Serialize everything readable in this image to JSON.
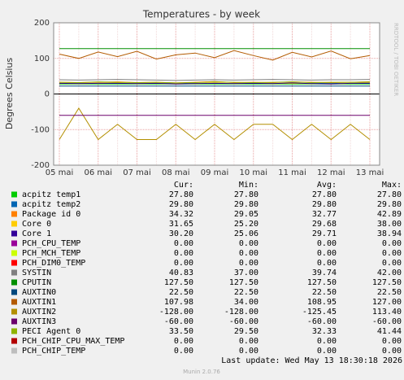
{
  "chart_data": {
    "type": "line",
    "title": "Temperatures - by week",
    "y_label": "Degrees Celsius",
    "side_text": "RRDTOOL / TOBI OETIKER",
    "categories": [
      "05 mai",
      null,
      "06 mai",
      null,
      "07 mai",
      null,
      "08 mai",
      null,
      "09 mai",
      null,
      "10 mai",
      null,
      "11 mai",
      null,
      "12 mai",
      null,
      "13 mai"
    ],
    "ylim": [
      -200,
      200
    ],
    "yticks": [
      -200,
      -100,
      0,
      100,
      200
    ],
    "grid": true,
    "table_header": [
      "Cur:",
      "Min:",
      "Avg:",
      "Max:"
    ],
    "series": [
      {
        "name": "acpitz temp1",
        "color": "#00cc00",
        "values": [
          27.8,
          27.8,
          27.8,
          27.8,
          27.8,
          27.8,
          27.8,
          27.8,
          27.8,
          27.8,
          27.8,
          27.8,
          27.8,
          27.8,
          27.8,
          27.8,
          27.8
        ],
        "stats": [
          "27.80",
          "27.80",
          "27.80",
          "27.80"
        ]
      },
      {
        "name": "acpitz temp2",
        "color": "#0066b3",
        "values": [
          29.8,
          29.8,
          29.8,
          29.8,
          29.8,
          29.8,
          29.8,
          29.8,
          29.8,
          29.8,
          29.8,
          29.8,
          29.8,
          29.8,
          29.8,
          29.8,
          29.8
        ],
        "stats": [
          "29.80",
          "29.80",
          "29.80",
          "29.80"
        ]
      },
      {
        "name": "Package id 0",
        "color": "#ff8000",
        "values": [
          33,
          32,
          33,
          34,
          32,
          33,
          31,
          33,
          35,
          32,
          33,
          32,
          34,
          33,
          32,
          33,
          34.32
        ],
        "stats": [
          "34.32",
          "29.05",
          "32.77",
          "42.89"
        ]
      },
      {
        "name": "Core 0",
        "color": "#ffcc00",
        "values": [
          30,
          29,
          30,
          31,
          29,
          30,
          28,
          29,
          31,
          29,
          30,
          29,
          30,
          29,
          28,
          30,
          31.65
        ],
        "stats": [
          "31.65",
          "25.20",
          "29.68",
          "38.00"
        ]
      },
      {
        "name": "Core 1",
        "color": "#330099",
        "values": [
          30,
          29,
          30,
          30,
          29,
          30,
          28,
          29,
          30,
          29,
          30,
          29,
          31,
          29,
          28,
          30,
          30.2
        ],
        "stats": [
          "30.20",
          "25.06",
          "29.71",
          "38.94"
        ]
      },
      {
        "name": "PCH_CPU_TEMP",
        "color": "#990099",
        "values": [
          0,
          0,
          0,
          0,
          0,
          0,
          0,
          0,
          0,
          0,
          0,
          0,
          0,
          0,
          0,
          0,
          0
        ],
        "stats": [
          "0.00",
          "0.00",
          "0.00",
          "0.00"
        ]
      },
      {
        "name": "PCH_MCH_TEMP",
        "color": "#ccff00",
        "values": [
          0,
          0,
          0,
          0,
          0,
          0,
          0,
          0,
          0,
          0,
          0,
          0,
          0,
          0,
          0,
          0,
          0
        ],
        "stats": [
          "0.00",
          "0.00",
          "0.00",
          "0.00"
        ]
      },
      {
        "name": "PCH_DIM0_TEMP",
        "color": "#ff0000",
        "values": [
          0,
          0,
          0,
          0,
          0,
          0,
          0,
          0,
          0,
          0,
          0,
          0,
          0,
          0,
          0,
          0,
          0
        ],
        "stats": [
          "0.00",
          "0.00",
          "0.00",
          "0.00"
        ]
      },
      {
        "name": "SYSTIN",
        "color": "#808080",
        "values": [
          40,
          39,
          40,
          41,
          40,
          39,
          38,
          39,
          40,
          39,
          40,
          41,
          40,
          39,
          40,
          40,
          40.83
        ],
        "stats": [
          "40.83",
          "37.00",
          "39.74",
          "42.00"
        ]
      },
      {
        "name": "CPUTIN",
        "color": "#008f00",
        "values": [
          127.5,
          127.5,
          127.5,
          127.5,
          127.5,
          127.5,
          127.5,
          127.5,
          127.5,
          127.5,
          127.5,
          127.5,
          127.5,
          127.5,
          127.5,
          127.5,
          127.5
        ],
        "stats": [
          "127.50",
          "127.50",
          "127.50",
          "127.50"
        ]
      },
      {
        "name": "AUXTIN0",
        "color": "#00487d",
        "values": [
          22.5,
          22.5,
          22.5,
          22.5,
          22.5,
          22.5,
          22.5,
          22.5,
          22.5,
          22.5,
          22.5,
          22.5,
          22.5,
          22.5,
          22.5,
          22.5,
          22.5
        ],
        "stats": [
          "22.50",
          "22.50",
          "22.50",
          "22.50"
        ]
      },
      {
        "name": "AUXTIN1",
        "color": "#b35a00",
        "values": [
          112,
          100,
          118,
          105,
          120,
          98,
          110,
          115,
          102,
          122,
          108,
          95,
          117,
          104,
          121,
          99,
          107.98
        ],
        "stats": [
          "107.98",
          "34.00",
          "108.95",
          "127.00"
        ]
      },
      {
        "name": "AUXTIN2",
        "color": "#b38f00",
        "values": [
          -128,
          -40,
          -128,
          -85,
          -128,
          -128,
          -85,
          -128,
          -85,
          -128,
          -85,
          -85,
          -128,
          -85,
          -128,
          -85,
          -128
        ],
        "stats": [
          "-128.00",
          "-128.00",
          "-125.45",
          "113.40"
        ]
      },
      {
        "name": "AUXTIN3",
        "color": "#6b006b",
        "values": [
          -60,
          -60,
          -60,
          -60,
          -60,
          -60,
          -60,
          -60,
          -60,
          -60,
          -60,
          -60,
          -60,
          -60,
          -60,
          -60,
          -60
        ],
        "stats": [
          "-60.00",
          "-60.00",
          "-60.00",
          "-60.00"
        ]
      },
      {
        "name": "PECI Agent 0",
        "color": "#8fb300",
        "values": [
          33,
          32,
          34,
          33,
          32,
          33,
          31,
          32,
          34,
          33,
          32,
          33,
          34,
          32,
          33,
          33,
          33.5
        ],
        "stats": [
          "33.50",
          "29.50",
          "32.33",
          "41.44"
        ]
      },
      {
        "name": "PCH_CHIP_CPU_MAX_TEMP",
        "color": "#b30000",
        "values": [
          0,
          0,
          0,
          0,
          0,
          0,
          0,
          0,
          0,
          0,
          0,
          0,
          0,
          0,
          0,
          0,
          0
        ],
        "stats": [
          "0.00",
          "0.00",
          "0.00",
          "0.00"
        ]
      },
      {
        "name": "PCH_CHIP_TEMP",
        "color": "#bebebe",
        "values": [
          0,
          0,
          0,
          0,
          0,
          0,
          0,
          0,
          0,
          0,
          0,
          0,
          0,
          0,
          0,
          0,
          0
        ],
        "stats": [
          "0.00",
          "0.00",
          "0.00",
          "0.00"
        ]
      }
    ],
    "last_update": "Last update: Wed May 13 18:30:18 2026",
    "footer": "Munin 2.0.76"
  }
}
